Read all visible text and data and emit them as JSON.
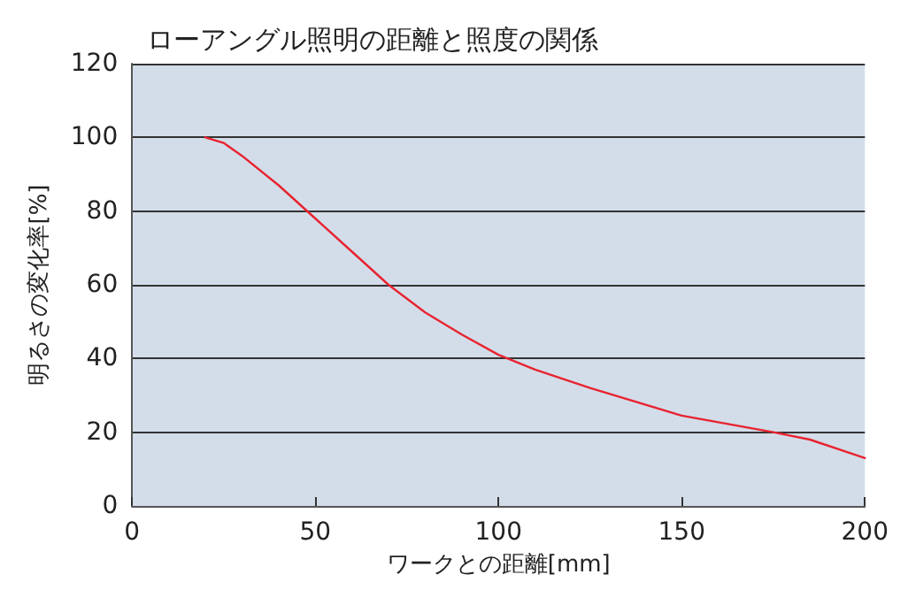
{
  "chart_data": {
    "type": "line",
    "title": "ローアングル照明の距離と照度の関係",
    "xlabel": "ワークとの距離[mm]",
    "ylabel": "明るさの変化率[%]",
    "x": [
      20,
      25,
      30,
      40,
      50,
      60,
      70,
      80,
      90,
      100,
      110,
      125,
      150,
      175,
      185,
      200
    ],
    "series": [
      {
        "color": "#e8232f",
        "values": [
          100,
          98.5,
          95,
          87,
          78,
          69,
          60,
          52.5,
          46.5,
          41,
          37,
          32,
          24.5,
          20,
          18,
          13
        ]
      }
    ],
    "xlim": [
      0,
      200
    ],
    "xticks": [
      0,
      50,
      100,
      150,
      200
    ],
    "ylim": [
      0,
      120
    ],
    "yticks": [
      0,
      20,
      40,
      60,
      80,
      100,
      120
    ],
    "grid": "y",
    "marker": "none",
    "line_style": "solid"
  }
}
